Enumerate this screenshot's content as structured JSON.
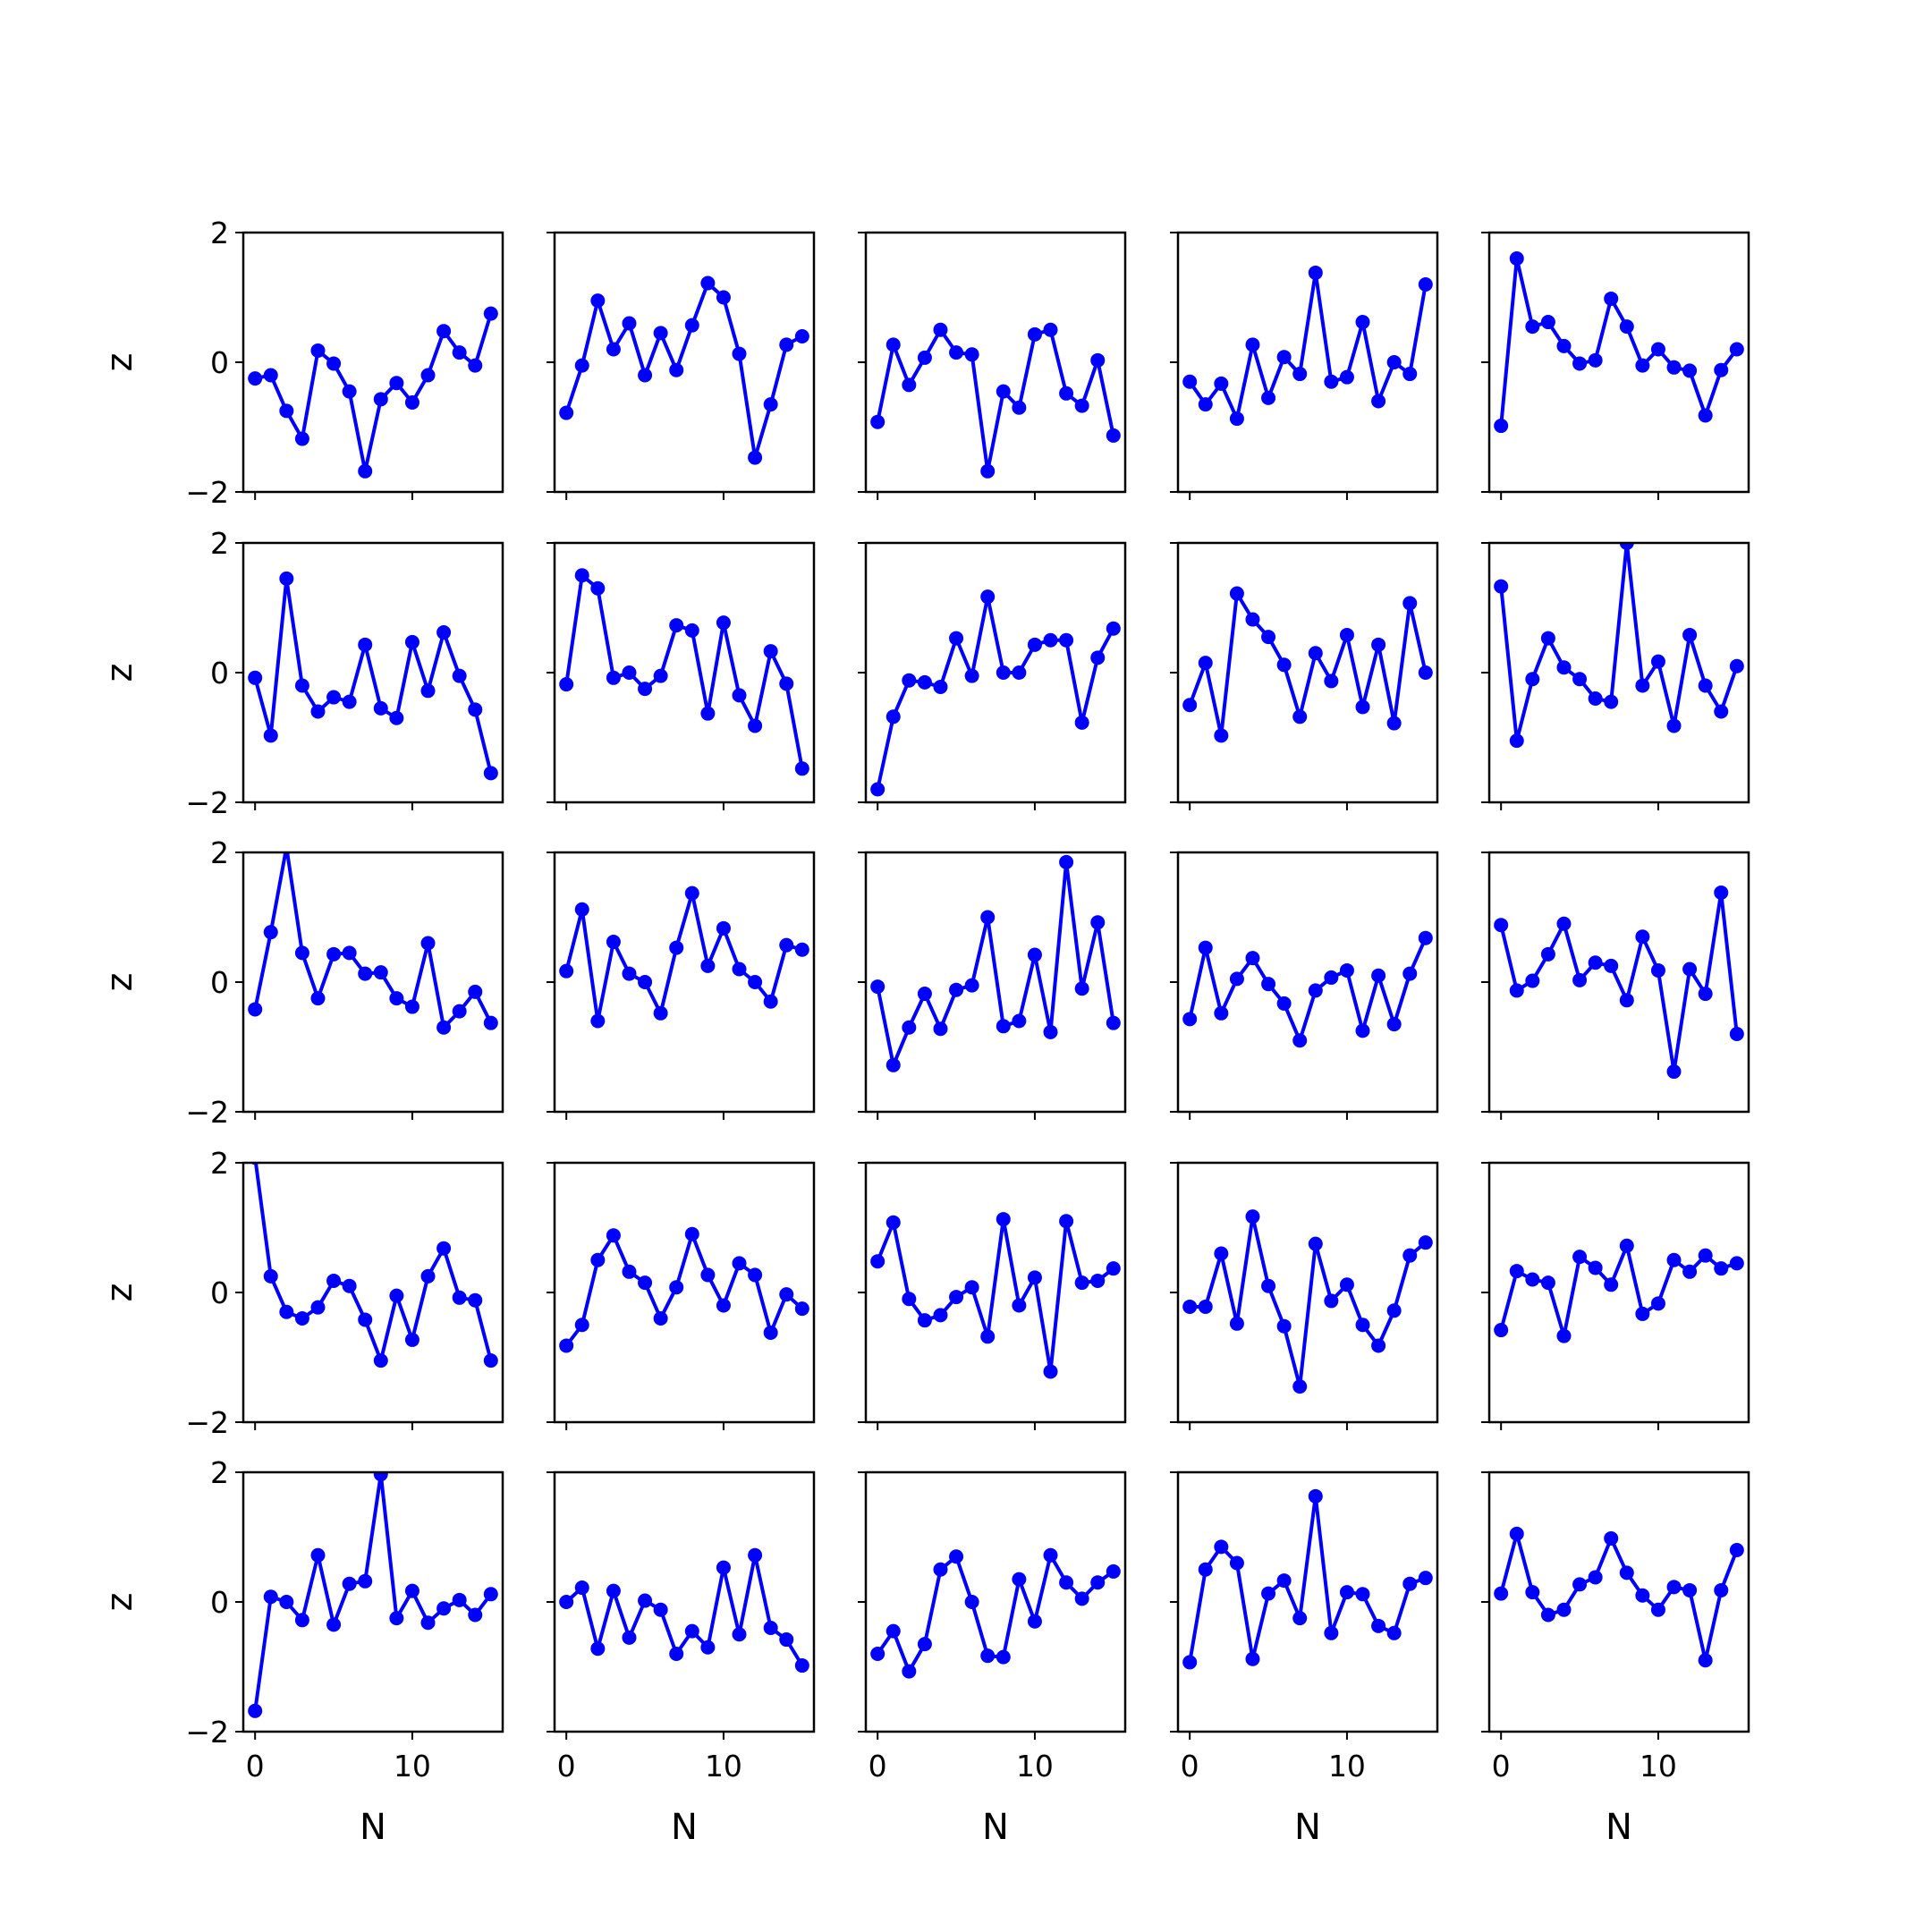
{
  "chart_data": {
    "type": "line",
    "layout": "5x5 grid of line plots with markers, shared x and y axes",
    "series_color": "#0000ff",
    "xlabel": "N",
    "ylabel": "z",
    "xlim": [
      -0.75,
      15.75
    ],
    "ylim": [
      -2,
      2
    ],
    "x_ticks": [
      0,
      10
    ],
    "y_ticks": [
      -2,
      0,
      2
    ],
    "x": [
      0,
      1,
      2,
      3,
      4,
      5,
      6,
      7,
      8,
      9,
      10,
      11,
      12,
      13,
      14,
      15
    ],
    "panels": [
      [
        -0.25,
        -0.2,
        -0.75,
        -1.18,
        0.18,
        -0.02,
        -0.45,
        -1.68,
        -0.57,
        -0.32,
        -0.62,
        -0.2,
        0.48,
        0.15,
        -0.05,
        0.75
      ],
      [
        -0.78,
        -0.05,
        0.95,
        0.2,
        0.6,
        -0.2,
        0.45,
        -0.12,
        0.57,
        1.22,
        1.0,
        0.13,
        -1.47,
        -0.65,
        0.27,
        0.4
      ],
      [
        -0.92,
        0.27,
        -0.35,
        0.07,
        0.5,
        0.15,
        0.12,
        -1.68,
        -0.45,
        -0.7,
        0.43,
        0.5,
        -0.48,
        -0.67,
        0.03,
        -1.13
      ],
      [
        -0.3,
        -0.65,
        -0.33,
        -0.87,
        0.27,
        -0.55,
        0.08,
        -0.18,
        1.38,
        -0.3,
        -0.23,
        0.62,
        -0.6,
        0.0,
        -0.18,
        1.2
      ],
      [
        -0.98,
        1.6,
        0.55,
        0.62,
        0.25,
        -0.02,
        0.03,
        0.98,
        0.55,
        -0.05,
        0.2,
        -0.08,
        -0.13,
        -0.82,
        -0.12,
        0.2
      ],
      [
        -0.08,
        -0.97,
        1.45,
        -0.2,
        -0.6,
        -0.38,
        -0.45,
        0.43,
        -0.55,
        -0.7,
        0.47,
        -0.28,
        0.62,
        -0.05,
        -0.57,
        -1.55
      ],
      [
        -0.18,
        1.5,
        1.3,
        -0.08,
        0.0,
        -0.25,
        -0.05,
        0.73,
        0.65,
        -0.63,
        0.77,
        -0.35,
        -0.82,
        0.33,
        -0.17,
        -1.48
      ],
      [
        -1.8,
        -0.68,
        -0.12,
        -0.15,
        -0.22,
        0.53,
        -0.05,
        1.17,
        0.0,
        0.0,
        0.43,
        0.5,
        0.5,
        -0.77,
        0.23,
        0.68
      ],
      [
        -0.5,
        0.15,
        -0.97,
        1.22,
        0.82,
        0.55,
        0.12,
        -0.68,
        0.3,
        -0.13,
        0.58,
        -0.53,
        0.43,
        -0.78,
        1.07,
        0.0
      ],
      [
        1.33,
        -1.05,
        -0.1,
        0.53,
        0.08,
        -0.1,
        -0.4,
        -0.45,
        2.0,
        -0.2,
        0.17,
        -0.82,
        0.58,
        -0.2,
        -0.6,
        0.1
      ],
      [
        -0.42,
        0.77,
        2.08,
        0.45,
        -0.25,
        0.43,
        0.45,
        0.13,
        0.15,
        -0.25,
        -0.38,
        0.6,
        -0.7,
        -0.45,
        -0.15,
        -0.63
      ],
      [
        0.17,
        1.12,
        -0.6,
        0.62,
        0.13,
        0.0,
        -0.48,
        0.53,
        1.37,
        0.25,
        0.83,
        0.2,
        0.0,
        -0.3,
        0.57,
        0.5
      ],
      [
        -0.07,
        -1.28,
        -0.7,
        -0.18,
        -0.72,
        -0.12,
        -0.05,
        1.0,
        -0.68,
        -0.6,
        0.42,
        -0.77,
        1.85,
        -0.1,
        0.92,
        -0.63
      ],
      [
        -0.57,
        0.53,
        -0.48,
        0.05,
        0.37,
        -0.03,
        -0.33,
        -0.9,
        -0.13,
        0.07,
        0.18,
        -0.75,
        0.1,
        -0.65,
        0.13,
        0.68
      ],
      [
        0.88,
        -0.13,
        0.02,
        0.43,
        0.9,
        0.03,
        0.3,
        0.25,
        -0.28,
        0.7,
        0.18,
        -1.38,
        0.2,
        -0.18,
        1.38,
        -0.8
      ],
      [
        2.08,
        0.25,
        -0.3,
        -0.4,
        -0.23,
        0.18,
        0.1,
        -0.42,
        -1.05,
        -0.05,
        -0.73,
        0.25,
        0.68,
        -0.08,
        -0.12,
        -1.05
      ],
      [
        -0.82,
        -0.5,
        0.5,
        0.88,
        0.32,
        0.15,
        -0.4,
        0.08,
        0.9,
        0.27,
        -0.2,
        0.45,
        0.27,
        -0.62,
        -0.03,
        -0.25
      ],
      [
        0.48,
        1.08,
        -0.1,
        -0.43,
        -0.35,
        -0.07,
        0.08,
        -0.68,
        1.13,
        -0.2,
        0.23,
        -1.22,
        1.1,
        0.15,
        0.18,
        0.37
      ],
      [
        -0.22,
        -0.22,
        0.6,
        -0.48,
        1.17,
        0.1,
        -0.52,
        -1.45,
        0.75,
        -0.13,
        0.12,
        -0.5,
        -0.82,
        -0.28,
        0.57,
        0.77
      ],
      [
        -0.58,
        0.33,
        0.2,
        0.15,
        -0.67,
        0.55,
        0.38,
        0.12,
        0.72,
        -0.33,
        -0.17,
        0.5,
        0.32,
        0.57,
        0.37,
        0.45
      ],
      [
        -1.68,
        0.08,
        0.0,
        -0.28,
        0.72,
        -0.35,
        0.28,
        0.32,
        1.97,
        -0.25,
        0.17,
        -0.32,
        -0.1,
        0.03,
        -0.2,
        0.12
      ],
      [
        0.0,
        0.22,
        -0.72,
        0.17,
        -0.55,
        0.02,
        -0.12,
        -0.8,
        -0.45,
        -0.7,
        0.53,
        -0.5,
        0.72,
        -0.4,
        -0.58,
        -0.98
      ],
      [
        -0.8,
        -0.45,
        -1.07,
        -0.65,
        0.5,
        0.7,
        0.0,
        -0.83,
        -0.85,
        0.35,
        -0.3,
        0.72,
        0.3,
        0.05,
        0.3,
        0.47
      ],
      [
        -0.93,
        0.5,
        0.85,
        0.6,
        -0.88,
        0.13,
        0.33,
        -0.25,
        1.63,
        -0.48,
        0.15,
        0.12,
        -0.37,
        -0.48,
        0.28,
        0.37
      ],
      [
        0.13,
        1.05,
        0.15,
        -0.2,
        -0.12,
        0.27,
        0.38,
        0.98,
        0.45,
        0.1,
        -0.12,
        0.23,
        0.18,
        -0.9,
        0.18,
        0.8
      ]
    ]
  }
}
